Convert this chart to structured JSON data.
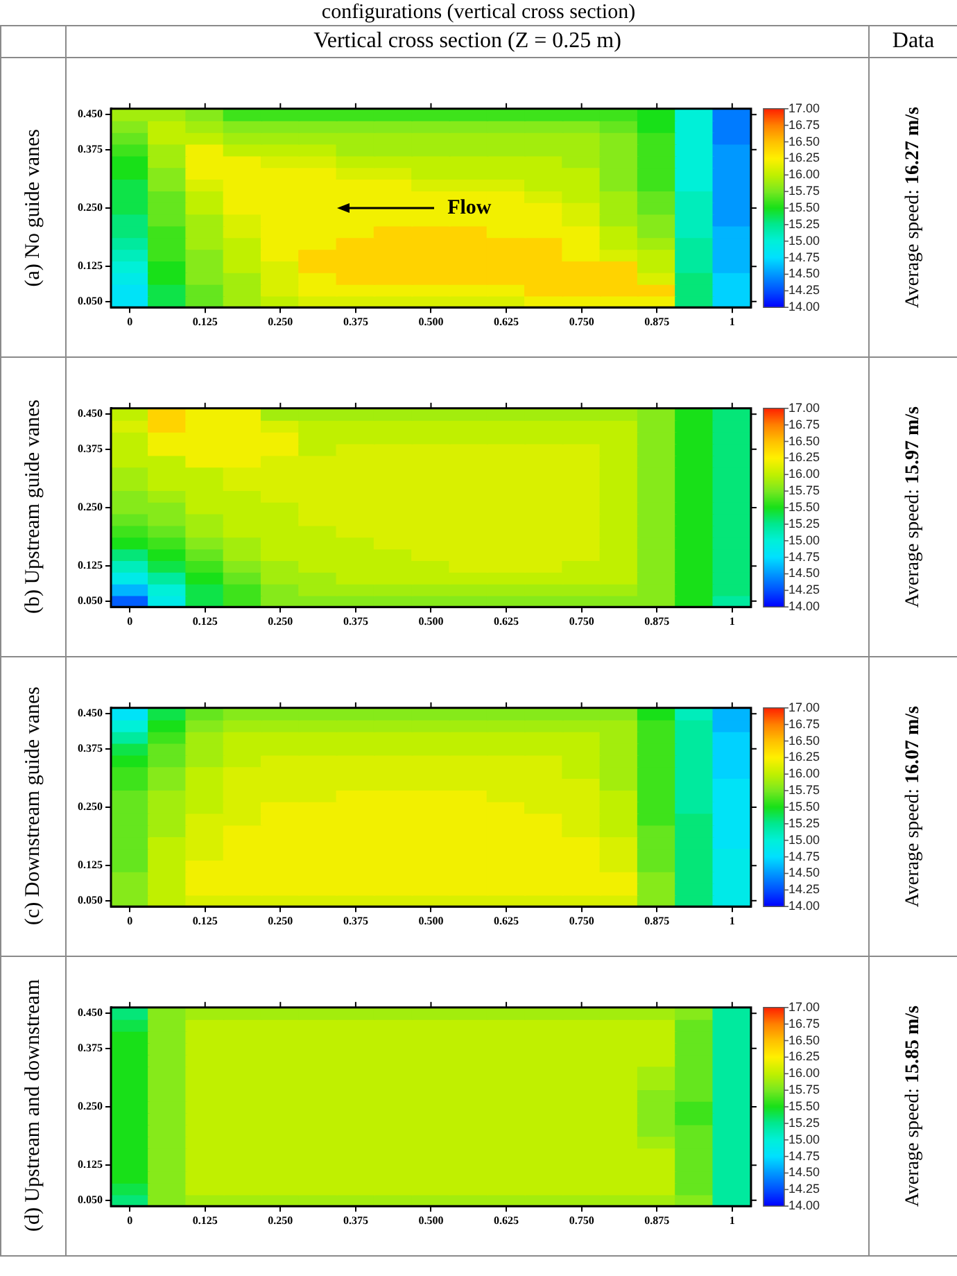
{
  "chart_data": [
    {
      "type": "heatmap",
      "title": "(a) No guide vanes",
      "annotations": [
        "configurations (vertical cross section)",
        "Vertical cross section (Z = 0.25 m)",
        "Data",
        "Flow",
        "Average speed: 16.27 m/s"
      ],
      "categories": [
        "0",
        null,
        "0.125",
        null,
        "0.250",
        null,
        "0.375",
        null,
        "0.500",
        null,
        "0.625",
        null,
        "0.750",
        null,
        "0.875",
        null,
        "1"
      ],
      "y_categories": [
        "0.450",
        null,
        null,
        "0.375",
        null,
        null,
        null,
        null,
        "0.250",
        null,
        null,
        null,
        null,
        "0.125",
        null,
        null,
        "0.050"
      ],
      "cells": [
        [
          15.9,
          15.9,
          15.8,
          15.6,
          15.6,
          15.6,
          15.6,
          15.6,
          15.6,
          15.6,
          15.6,
          15.6,
          15.6,
          15.6,
          15.5,
          15.0,
          14.4
        ],
        [
          15.8,
          16.0,
          15.9,
          15.8,
          15.8,
          15.8,
          15.8,
          15.8,
          15.8,
          15.8,
          15.8,
          15.8,
          15.8,
          15.7,
          15.5,
          15.0,
          14.4
        ],
        [
          15.7,
          16.0,
          16.0,
          15.9,
          15.9,
          15.9,
          15.9,
          15.9,
          15.9,
          15.9,
          15.9,
          15.9,
          15.9,
          15.8,
          15.6,
          15.0,
          14.4
        ],
        [
          15.6,
          15.9,
          16.2,
          16.0,
          16.0,
          16.0,
          15.9,
          15.9,
          15.9,
          15.9,
          15.9,
          15.9,
          15.9,
          15.8,
          15.6,
          15.0,
          14.5
        ],
        [
          15.5,
          15.9,
          16.2,
          16.2,
          16.1,
          16.1,
          16.0,
          16.0,
          16.0,
          16.0,
          16.0,
          16.0,
          15.9,
          15.8,
          15.6,
          15.0,
          14.5
        ],
        [
          15.5,
          15.8,
          16.2,
          16.2,
          16.2,
          16.2,
          16.1,
          16.1,
          16.0,
          16.0,
          16.0,
          16.0,
          16.0,
          15.8,
          15.6,
          15.0,
          14.5
        ],
        [
          15.4,
          15.8,
          16.1,
          16.2,
          16.2,
          16.2,
          16.2,
          16.2,
          16.1,
          16.1,
          16.1,
          16.0,
          16.0,
          15.8,
          15.6,
          15.0,
          14.5
        ],
        [
          15.4,
          15.7,
          16.0,
          16.2,
          16.2,
          16.2,
          16.2,
          16.2,
          16.2,
          16.2,
          16.2,
          16.1,
          16.0,
          15.9,
          15.7,
          15.1,
          14.5
        ],
        [
          15.4,
          15.7,
          16.0,
          16.2,
          16.2,
          16.2,
          16.2,
          16.2,
          16.2,
          16.2,
          16.2,
          16.2,
          16.1,
          15.9,
          15.7,
          15.1,
          14.5
        ],
        [
          15.3,
          15.7,
          15.9,
          16.1,
          16.2,
          16.2,
          16.2,
          16.2,
          16.2,
          16.2,
          16.2,
          16.2,
          16.1,
          15.9,
          15.8,
          15.1,
          14.5
        ],
        [
          15.3,
          15.6,
          15.9,
          16.1,
          16.2,
          16.2,
          16.2,
          16.4,
          16.4,
          16.4,
          16.2,
          16.2,
          16.2,
          16.0,
          15.8,
          15.1,
          14.6
        ],
        [
          15.2,
          15.6,
          15.9,
          16.0,
          16.2,
          16.2,
          16.4,
          16.4,
          16.4,
          16.4,
          16.4,
          16.4,
          16.2,
          16.0,
          15.9,
          15.2,
          14.6
        ],
        [
          15.1,
          15.6,
          15.8,
          16.0,
          16.2,
          16.4,
          16.4,
          16.4,
          16.4,
          16.4,
          16.4,
          16.4,
          16.2,
          16.1,
          16.0,
          15.2,
          14.6
        ],
        [
          15.0,
          15.5,
          15.8,
          16.0,
          16.1,
          16.4,
          16.4,
          16.4,
          16.4,
          16.4,
          16.4,
          16.4,
          16.4,
          16.4,
          16.0,
          15.2,
          14.6
        ],
        [
          14.9,
          15.5,
          15.8,
          15.9,
          16.1,
          16.2,
          16.4,
          16.4,
          16.4,
          16.4,
          16.4,
          16.4,
          16.4,
          16.4,
          16.1,
          15.3,
          14.7
        ],
        [
          14.8,
          15.4,
          15.7,
          15.9,
          16.1,
          16.2,
          16.2,
          16.2,
          16.2,
          16.2,
          16.2,
          16.4,
          16.4,
          16.4,
          16.4,
          15.3,
          14.7
        ],
        [
          14.8,
          15.4,
          15.7,
          15.9,
          16.0,
          16.1,
          16.1,
          16.1,
          16.1,
          16.1,
          16.1,
          16.2,
          16.2,
          16.2,
          16.2,
          15.3,
          14.7
        ]
      ],
      "clim": [
        14,
        17
      ],
      "cticks": [
        {
          "value": 14,
          "label": "14.00"
        },
        14.25,
        {
          "value": 14.5,
          "label": "14.50"
        },
        14.75,
        {
          "value": 15,
          "label": "15.00"
        },
        15.25,
        {
          "value": 15.5,
          "label": "15.50"
        },
        15.75,
        {
          "value": 16,
          "label": "16.00"
        },
        16.25,
        {
          "value": 16.5,
          "label": "16.50"
        },
        16.75,
        {
          "value": 17,
          "label": "17.00"
        }
      ]
    },
    {
      "type": "heatmap",
      "title": "(b) Upstream guide vanes",
      "annotations": [
        "Average speed: 15.97 m/s"
      ],
      "categories": [
        "0",
        null,
        "0.125",
        null,
        "0.250",
        null,
        "0.375",
        null,
        "0.500",
        null,
        "0.625",
        null,
        "0.750",
        null,
        "0.875",
        null,
        "1"
      ],
      "y_categories": [
        "0.450",
        null,
        null,
        "0.375",
        null,
        null,
        null,
        null,
        "0.250",
        null,
        null,
        null,
        null,
        "0.125",
        null,
        null,
        "0.050"
      ],
      "cells": [
        [
          16.0,
          16.4,
          16.2,
          16.2,
          15.9,
          15.9,
          15.9,
          15.9,
          15.9,
          15.9,
          15.9,
          15.9,
          15.9,
          15.9,
          15.8,
          15.5,
          15.3
        ],
        [
          16.1,
          16.4,
          16.2,
          16.2,
          16.1,
          16.0,
          16.0,
          16.0,
          16.0,
          16.0,
          16.0,
          16.0,
          16.0,
          16.0,
          15.8,
          15.5,
          15.3
        ],
        [
          16.0,
          16.2,
          16.2,
          16.2,
          16.2,
          16.0,
          16.0,
          16.0,
          16.0,
          16.0,
          16.0,
          16.0,
          16.0,
          16.0,
          15.8,
          15.5,
          15.3
        ],
        [
          16.0,
          16.2,
          16.2,
          16.2,
          16.2,
          16.0,
          16.1,
          16.1,
          16.1,
          16.1,
          16.1,
          16.1,
          16.1,
          16.0,
          15.8,
          15.5,
          15.3
        ],
        [
          16.0,
          16.0,
          16.2,
          16.2,
          16.1,
          16.1,
          16.1,
          16.1,
          16.1,
          16.1,
          16.1,
          16.1,
          16.1,
          16.0,
          15.8,
          15.5,
          15.3
        ],
        [
          15.9,
          16.0,
          16.0,
          16.1,
          16.1,
          16.1,
          16.1,
          16.1,
          16.1,
          16.1,
          16.1,
          16.1,
          16.1,
          16.0,
          15.8,
          15.5,
          15.3
        ],
        [
          15.9,
          16.0,
          16.0,
          16.1,
          16.1,
          16.1,
          16.1,
          16.1,
          16.1,
          16.1,
          16.1,
          16.1,
          16.1,
          16.0,
          15.8,
          15.5,
          15.3
        ],
        [
          15.8,
          15.9,
          16.0,
          16.0,
          16.1,
          16.1,
          16.1,
          16.1,
          16.1,
          16.1,
          16.1,
          16.1,
          16.1,
          16.0,
          15.8,
          15.5,
          15.3
        ],
        [
          15.8,
          15.8,
          16.0,
          16.0,
          16.0,
          16.1,
          16.1,
          16.1,
          16.1,
          16.1,
          16.1,
          16.1,
          16.1,
          16.0,
          15.8,
          15.5,
          15.3
        ],
        [
          15.7,
          15.8,
          15.9,
          16.0,
          16.0,
          16.1,
          16.1,
          16.1,
          16.1,
          16.1,
          16.1,
          16.1,
          16.1,
          16.0,
          15.8,
          15.5,
          15.3
        ],
        [
          15.6,
          15.7,
          15.9,
          16.0,
          16.0,
          16.0,
          16.1,
          16.1,
          16.1,
          16.1,
          16.1,
          16.1,
          16.1,
          16.0,
          15.8,
          15.5,
          15.3
        ],
        [
          15.5,
          15.6,
          15.8,
          15.9,
          16.0,
          16.0,
          16.0,
          16.1,
          16.1,
          16.1,
          16.1,
          16.1,
          16.1,
          16.0,
          15.8,
          15.5,
          15.3
        ],
        [
          15.3,
          15.5,
          15.7,
          15.9,
          16.0,
          16.0,
          16.0,
          16.0,
          16.1,
          16.1,
          16.1,
          16.1,
          16.1,
          16.0,
          15.8,
          15.5,
          15.3
        ],
        [
          15.1,
          15.4,
          15.6,
          15.8,
          15.9,
          16.0,
          16.0,
          16.0,
          16.0,
          16.1,
          16.1,
          16.1,
          16.0,
          16.0,
          15.8,
          15.5,
          15.3
        ],
        [
          14.9,
          15.2,
          15.5,
          15.7,
          15.9,
          15.9,
          16.0,
          16.0,
          16.0,
          16.0,
          16.0,
          16.0,
          16.0,
          16.0,
          15.8,
          15.5,
          15.3
        ],
        [
          14.6,
          15.0,
          15.4,
          15.6,
          15.8,
          15.9,
          15.9,
          15.9,
          15.9,
          15.9,
          15.9,
          15.9,
          15.9,
          15.9,
          15.8,
          15.5,
          15.3
        ],
        [
          14.3,
          14.9,
          15.4,
          15.6,
          15.8,
          15.8,
          15.8,
          15.8,
          15.8,
          15.8,
          15.8,
          15.8,
          15.8,
          15.8,
          15.8,
          15.5,
          15.2
        ]
      ],
      "clim": [
        14,
        17
      ],
      "cticks": [
        {
          "value": 14,
          "label": "14.00"
        },
        14.25,
        {
          "value": 14.5,
          "label": "14.50"
        },
        14.75,
        {
          "value": 15,
          "label": "15.00"
        },
        15.25,
        {
          "value": 15.5,
          "label": "15.50"
        },
        15.75,
        {
          "value": 16,
          "label": "16.00"
        },
        16.25,
        {
          "value": 16.5,
          "label": "16.50"
        },
        16.75,
        {
          "value": 17,
          "label": "17.00"
        }
      ]
    },
    {
      "type": "heatmap",
      "title": "(c) Downstream guide vanes",
      "annotations": [
        "Average speed: 16.07 m/s"
      ],
      "categories": [
        "0",
        null,
        "0.125",
        null,
        "0.250",
        null,
        "0.375",
        null,
        "0.500",
        null,
        "0.625",
        null,
        "0.750",
        null,
        "0.875",
        null,
        "1"
      ],
      "y_categories": [
        "0.450",
        null,
        null,
        "0.375",
        null,
        null,
        null,
        null,
        "0.250",
        null,
        null,
        null,
        null,
        "0.125",
        null,
        null,
        "0.050"
      ],
      "cells": [
        [
          14.8,
          15.4,
          15.7,
          15.8,
          15.8,
          15.8,
          15.8,
          15.8,
          15.8,
          15.8,
          15.8,
          15.8,
          15.8,
          15.8,
          15.5,
          15.1,
          14.6
        ],
        [
          15.0,
          15.5,
          15.8,
          15.9,
          15.9,
          15.9,
          15.9,
          15.9,
          15.9,
          15.9,
          15.9,
          15.9,
          15.9,
          15.9,
          15.6,
          15.2,
          14.6
        ],
        [
          15.2,
          15.6,
          15.9,
          16.0,
          16.0,
          16.0,
          16.0,
          16.0,
          16.0,
          16.0,
          16.0,
          16.0,
          16.0,
          15.9,
          15.6,
          15.2,
          14.7
        ],
        [
          15.4,
          15.7,
          15.9,
          16.0,
          16.0,
          16.0,
          16.0,
          16.0,
          16.0,
          16.0,
          16.0,
          16.0,
          16.0,
          15.9,
          15.6,
          15.2,
          14.7
        ],
        [
          15.5,
          15.7,
          15.9,
          16.0,
          16.1,
          16.1,
          16.1,
          16.1,
          16.1,
          16.1,
          16.1,
          16.1,
          16.0,
          15.9,
          15.6,
          15.2,
          14.7
        ],
        [
          15.6,
          15.8,
          16.0,
          16.1,
          16.1,
          16.1,
          16.1,
          16.1,
          16.1,
          16.1,
          16.1,
          16.1,
          16.0,
          15.9,
          15.6,
          15.2,
          14.7
        ],
        [
          15.6,
          15.8,
          16.0,
          16.1,
          16.1,
          16.1,
          16.1,
          16.1,
          16.1,
          16.1,
          16.1,
          16.1,
          16.1,
          15.9,
          15.6,
          15.2,
          14.8
        ],
        [
          15.7,
          15.9,
          16.0,
          16.1,
          16.1,
          16.1,
          16.2,
          16.2,
          16.2,
          16.2,
          16.1,
          16.1,
          16.1,
          16.0,
          15.6,
          15.2,
          14.8
        ],
        [
          15.7,
          15.9,
          16.0,
          16.1,
          16.2,
          16.2,
          16.2,
          16.2,
          16.2,
          16.2,
          16.2,
          16.1,
          16.1,
          16.0,
          15.6,
          15.2,
          14.8
        ],
        [
          15.7,
          15.9,
          16.1,
          16.1,
          16.2,
          16.2,
          16.2,
          16.2,
          16.2,
          16.2,
          16.2,
          16.2,
          16.1,
          16.0,
          15.6,
          15.3,
          14.8
        ],
        [
          15.7,
          15.9,
          16.1,
          16.2,
          16.2,
          16.2,
          16.2,
          16.2,
          16.2,
          16.2,
          16.2,
          16.2,
          16.1,
          16.0,
          15.7,
          15.3,
          14.8
        ],
        [
          15.7,
          16.0,
          16.1,
          16.2,
          16.2,
          16.2,
          16.2,
          16.2,
          16.2,
          16.2,
          16.2,
          16.2,
          16.2,
          16.1,
          15.7,
          15.3,
          14.8
        ],
        [
          15.7,
          16.0,
          16.1,
          16.2,
          16.2,
          16.2,
          16.2,
          16.2,
          16.2,
          16.2,
          16.2,
          16.2,
          16.2,
          16.1,
          15.7,
          15.3,
          14.9
        ],
        [
          15.7,
          16.0,
          16.2,
          16.2,
          16.2,
          16.2,
          16.2,
          16.2,
          16.2,
          16.2,
          16.2,
          16.2,
          16.2,
          16.1,
          15.7,
          15.3,
          14.9
        ],
        [
          15.8,
          16.0,
          16.2,
          16.2,
          16.2,
          16.2,
          16.2,
          16.2,
          16.2,
          16.2,
          16.2,
          16.2,
          16.2,
          16.2,
          15.8,
          15.3,
          14.9
        ],
        [
          15.8,
          16.0,
          16.2,
          16.2,
          16.2,
          16.2,
          16.2,
          16.2,
          16.2,
          16.2,
          16.2,
          16.2,
          16.2,
          16.2,
          15.8,
          15.3,
          14.9
        ],
        [
          15.8,
          16.0,
          16.1,
          16.1,
          16.1,
          16.1,
          16.1,
          16.1,
          16.1,
          16.1,
          16.1,
          16.1,
          16.1,
          16.1,
          15.8,
          15.3,
          14.9
        ]
      ],
      "clim": [
        14,
        17
      ],
      "cticks": [
        {
          "value": 14,
          "label": "14.00"
        },
        14.25,
        {
          "value": 14.5,
          "label": "14.50"
        },
        14.75,
        {
          "value": 15,
          "label": "15.00"
        },
        15.25,
        {
          "value": 15.5,
          "label": "15.50"
        },
        15.75,
        {
          "value": 16,
          "label": "16.00"
        },
        16.25,
        {
          "value": 16.5,
          "label": "16.50"
        },
        16.75,
        {
          "value": 17,
          "label": "17.00"
        }
      ]
    },
    {
      "type": "heatmap",
      "title": "(d) Upstream and downstream",
      "annotations": [
        "Average speed: 15.85 m/s"
      ],
      "categories": [
        "0",
        null,
        "0.125",
        null,
        "0.250",
        null,
        "0.375",
        null,
        "0.500",
        null,
        "0.625",
        null,
        "0.750",
        null,
        "0.875",
        null,
        "1"
      ],
      "y_categories": [
        "0.450",
        null,
        null,
        "0.375",
        null,
        null,
        null,
        null,
        "0.250",
        null,
        null,
        null,
        null,
        "0.125",
        null,
        null,
        "0.050"
      ],
      "cells": [
        [
          15.3,
          15.8,
          15.9,
          15.9,
          15.9,
          15.9,
          15.9,
          15.9,
          15.9,
          15.9,
          15.9,
          15.9,
          15.9,
          15.9,
          15.9,
          15.8,
          15.2
        ],
        [
          15.4,
          15.8,
          16.0,
          16.0,
          16.0,
          16.0,
          16.0,
          16.0,
          16.0,
          16.0,
          16.0,
          16.0,
          16.0,
          16.0,
          16.0,
          15.7,
          15.2
        ],
        [
          15.5,
          15.8,
          16.0,
          16.0,
          16.0,
          16.0,
          16.0,
          16.0,
          16.0,
          16.0,
          16.0,
          16.0,
          16.0,
          16.0,
          16.0,
          15.7,
          15.2
        ],
        [
          15.5,
          15.8,
          16.0,
          16.0,
          16.0,
          16.0,
          16.0,
          16.0,
          16.0,
          16.0,
          16.0,
          16.0,
          16.0,
          16.0,
          16.0,
          15.7,
          15.2
        ],
        [
          15.5,
          15.8,
          16.0,
          16.0,
          16.0,
          16.0,
          16.0,
          16.0,
          16.0,
          16.0,
          16.0,
          16.0,
          16.0,
          16.0,
          16.0,
          15.7,
          15.2
        ],
        [
          15.5,
          15.8,
          16.0,
          16.0,
          16.0,
          16.0,
          16.0,
          16.0,
          16.0,
          16.0,
          16.0,
          16.0,
          16.0,
          16.0,
          15.9,
          15.7,
          15.2
        ],
        [
          15.5,
          15.8,
          16.0,
          16.0,
          16.0,
          16.0,
          16.0,
          16.0,
          16.0,
          16.0,
          16.0,
          16.0,
          16.0,
          16.0,
          15.9,
          15.7,
          15.2
        ],
        [
          15.5,
          15.8,
          16.0,
          16.0,
          16.0,
          16.0,
          16.0,
          16.0,
          16.0,
          16.0,
          16.0,
          16.0,
          16.0,
          16.0,
          15.8,
          15.7,
          15.2
        ],
        [
          15.5,
          15.8,
          16.0,
          16.0,
          16.0,
          16.0,
          16.0,
          16.0,
          16.0,
          16.0,
          16.0,
          16.0,
          16.0,
          16.0,
          15.8,
          15.6,
          15.2
        ],
        [
          15.5,
          15.8,
          16.0,
          16.0,
          16.0,
          16.0,
          16.0,
          16.0,
          16.0,
          16.0,
          16.0,
          16.0,
          16.0,
          16.0,
          15.8,
          15.6,
          15.2
        ],
        [
          15.5,
          15.8,
          16.0,
          16.0,
          16.0,
          16.0,
          16.0,
          16.0,
          16.0,
          16.0,
          16.0,
          16.0,
          16.0,
          16.0,
          15.8,
          15.7,
          15.2
        ],
        [
          15.5,
          15.8,
          16.0,
          16.0,
          16.0,
          16.0,
          16.0,
          16.0,
          16.0,
          16.0,
          16.0,
          16.0,
          16.0,
          16.0,
          15.9,
          15.7,
          15.2
        ],
        [
          15.5,
          15.8,
          16.0,
          16.0,
          16.0,
          16.0,
          16.0,
          16.0,
          16.0,
          16.0,
          16.0,
          16.0,
          16.0,
          16.0,
          16.0,
          15.7,
          15.2
        ],
        [
          15.5,
          15.8,
          16.0,
          16.0,
          16.0,
          16.0,
          16.0,
          16.0,
          16.0,
          16.0,
          16.0,
          16.0,
          16.0,
          16.0,
          16.0,
          15.7,
          15.2
        ],
        [
          15.5,
          15.8,
          16.0,
          16.0,
          16.0,
          16.0,
          16.0,
          16.0,
          16.0,
          16.0,
          16.0,
          16.0,
          16.0,
          16.0,
          16.0,
          15.7,
          15.2
        ],
        [
          15.4,
          15.8,
          16.0,
          16.0,
          16.0,
          16.0,
          16.0,
          16.0,
          16.0,
          16.0,
          16.0,
          16.0,
          16.0,
          16.0,
          16.0,
          15.7,
          15.2
        ],
        [
          15.3,
          15.8,
          15.9,
          15.9,
          15.9,
          15.9,
          15.9,
          15.9,
          15.9,
          15.9,
          15.9,
          15.9,
          15.9,
          15.9,
          15.9,
          15.8,
          15.2
        ]
      ],
      "clim": [
        14,
        17
      ],
      "cticks": [
        {
          "value": 14,
          "label": "14.00"
        },
        14.25,
        {
          "value": 14.5,
          "label": "14.50"
        },
        14.75,
        {
          "value": 15,
          "label": "15.00"
        },
        15.25,
        {
          "value": 15.5,
          "label": "15.50"
        },
        15.75,
        {
          "value": 16,
          "label": "16.00"
        },
        16.25,
        {
          "value": 16.5,
          "label": "16.50"
        },
        16.75,
        {
          "value": 17,
          "label": "17.00"
        }
      ]
    }
  ]
}
